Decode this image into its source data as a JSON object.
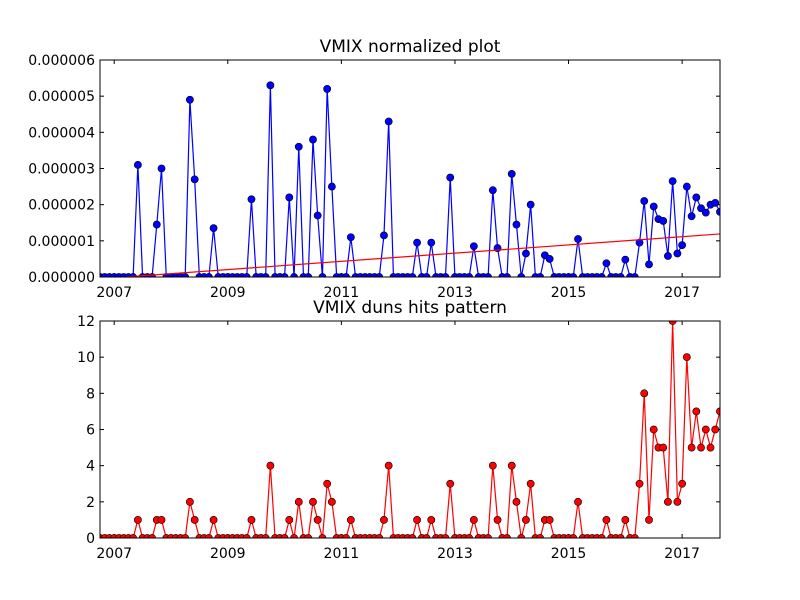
{
  "chart_data": [
    {
      "type": "line",
      "title": "VMIX normalized plot",
      "x": [
        2006.75,
        2006.833,
        2006.917,
        2007.0,
        2007.083,
        2007.167,
        2007.25,
        2007.333,
        2007.417,
        2007.5,
        2007.583,
        2007.667,
        2007.75,
        2007.833,
        2007.917,
        2008.0,
        2008.083,
        2008.167,
        2008.25,
        2008.333,
        2008.417,
        2008.5,
        2008.583,
        2008.667,
        2008.75,
        2008.833,
        2008.917,
        2009.0,
        2009.083,
        2009.167,
        2009.25,
        2009.333,
        2009.417,
        2009.5,
        2009.583,
        2009.667,
        2009.75,
        2009.833,
        2009.917,
        2010.0,
        2010.083,
        2010.167,
        2010.25,
        2010.333,
        2010.417,
        2010.5,
        2010.583,
        2010.667,
        2010.75,
        2010.833,
        2010.917,
        2011.0,
        2011.083,
        2011.167,
        2011.25,
        2011.333,
        2011.417,
        2011.5,
        2011.583,
        2011.667,
        2011.75,
        2011.833,
        2011.917,
        2012.0,
        2012.083,
        2012.167,
        2012.25,
        2012.333,
        2012.417,
        2012.5,
        2012.583,
        2012.667,
        2012.75,
        2012.833,
        2012.917,
        2013.0,
        2013.083,
        2013.167,
        2013.25,
        2013.333,
        2013.417,
        2013.5,
        2013.583,
        2013.667,
        2013.75,
        2013.833,
        2013.917,
        2014.0,
        2014.083,
        2014.167,
        2014.25,
        2014.333,
        2014.417,
        2014.5,
        2014.583,
        2014.667,
        2014.75,
        2014.833,
        2014.917,
        2015.0,
        2015.083,
        2015.167,
        2015.25,
        2015.333,
        2015.417,
        2015.5,
        2015.583,
        2015.667,
        2015.75,
        2015.833,
        2015.917,
        2016.0,
        2016.083,
        2016.167,
        2016.25,
        2016.333,
        2016.417,
        2016.5,
        2016.583,
        2016.667,
        2016.75,
        2016.833,
        2016.917,
        2017.0,
        2017.083,
        2017.167,
        2017.25,
        2017.333,
        2017.417,
        2017.5,
        2017.583,
        2017.667
      ],
      "series": [
        {
          "color": "#0000ff",
          "values": [
            0,
            0,
            0,
            0,
            0,
            0,
            0,
            0,
            3.1e-06,
            0,
            0,
            0,
            1.45e-06,
            3e-06,
            0,
            0,
            0,
            0,
            0,
            4.9e-06,
            2.7e-06,
            0,
            0,
            0,
            1.35e-06,
            0,
            0,
            0,
            0,
            0,
            0,
            0,
            2.15e-06,
            0,
            0,
            0,
            5.3e-06,
            0,
            0,
            0,
            2.2e-06,
            0,
            3.6e-06,
            0,
            0,
            3.8e-06,
            1.7e-06,
            0,
            5.2e-06,
            2.5e-06,
            0,
            0,
            0,
            1.1e-06,
            0,
            0,
            0,
            0,
            0,
            0,
            1.15e-06,
            4.3e-06,
            0,
            0,
            0,
            0,
            0,
            9.5e-07,
            0,
            0,
            9.5e-07,
            0,
            0,
            0,
            2.75e-06,
            0,
            0,
            0,
            0,
            8.5e-07,
            0,
            0,
            0,
            2.4e-06,
            8e-07,
            0,
            0,
            2.85e-06,
            1.45e-06,
            0,
            6.5e-07,
            2e-06,
            0,
            0,
            6e-07,
            5e-07,
            0,
            0,
            0,
            0,
            0,
            1.05e-06,
            0,
            0,
            0,
            0,
            0,
            3.8e-07,
            0,
            0,
            0,
            4.8e-07,
            0,
            0,
            9.5e-07,
            2.1e-06,
            3.5e-07,
            1.95e-06,
            1.6e-06,
            1.55e-06,
            5.8e-07,
            2.65e-06,
            6.5e-07,
            8.8e-07,
            2.5e-06,
            1.68e-06,
            2.2e-06,
            1.9e-06,
            1.78e-06,
            2e-06,
            2.05e-06,
            1.8e-06
          ]
        }
      ],
      "trend": {
        "color": "#ff0000",
        "x": [
          2006.75,
          2017.667
        ],
        "values": [
          -5e-08,
          1.19e-06
        ]
      },
      "xlim": [
        2006.75,
        2017.667
      ],
      "xticks": [
        2007,
        2009,
        2011,
        2013,
        2015,
        2017
      ],
      "ylim": [
        0,
        6e-06
      ],
      "yticks": [
        {
          "value": 0,
          "label": "0.000000"
        },
        {
          "value": 1e-06,
          "label": "0.000001"
        },
        {
          "value": 2e-06,
          "label": "0.000002"
        },
        {
          "value": 3e-06,
          "label": "0.000003"
        },
        {
          "value": 4e-06,
          "label": "0.000004"
        },
        {
          "value": 5e-06,
          "label": "0.000005"
        },
        {
          "value": 6e-06,
          "label": "0.000006"
        }
      ]
    },
    {
      "type": "line",
      "title": "VMIX duns hits pattern",
      "x": [
        2006.75,
        2006.833,
        2006.917,
        2007.0,
        2007.083,
        2007.167,
        2007.25,
        2007.333,
        2007.417,
        2007.5,
        2007.583,
        2007.667,
        2007.75,
        2007.833,
        2007.917,
        2008.0,
        2008.083,
        2008.167,
        2008.25,
        2008.333,
        2008.417,
        2008.5,
        2008.583,
        2008.667,
        2008.75,
        2008.833,
        2008.917,
        2009.0,
        2009.083,
        2009.167,
        2009.25,
        2009.333,
        2009.417,
        2009.5,
        2009.583,
        2009.667,
        2009.75,
        2009.833,
        2009.917,
        2010.0,
        2010.083,
        2010.167,
        2010.25,
        2010.333,
        2010.417,
        2010.5,
        2010.583,
        2010.667,
        2010.75,
        2010.833,
        2010.917,
        2011.0,
        2011.083,
        2011.167,
        2011.25,
        2011.333,
        2011.417,
        2011.5,
        2011.583,
        2011.667,
        2011.75,
        2011.833,
        2011.917,
        2012.0,
        2012.083,
        2012.167,
        2012.25,
        2012.333,
        2012.417,
        2012.5,
        2012.583,
        2012.667,
        2012.75,
        2012.833,
        2012.917,
        2013.0,
        2013.083,
        2013.167,
        2013.25,
        2013.333,
        2013.417,
        2013.5,
        2013.583,
        2013.667,
        2013.75,
        2013.833,
        2013.917,
        2014.0,
        2014.083,
        2014.167,
        2014.25,
        2014.333,
        2014.417,
        2014.5,
        2014.583,
        2014.667,
        2014.75,
        2014.833,
        2014.917,
        2015.0,
        2015.083,
        2015.167,
        2015.25,
        2015.333,
        2015.417,
        2015.5,
        2015.583,
        2015.667,
        2015.75,
        2015.833,
        2015.917,
        2016.0,
        2016.083,
        2016.167,
        2016.25,
        2016.333,
        2016.417,
        2016.5,
        2016.583,
        2016.667,
        2016.75,
        2016.833,
        2016.917,
        2017.0,
        2017.083,
        2017.167,
        2017.25,
        2017.333,
        2017.417,
        2017.5,
        2017.583,
        2017.667
      ],
      "series": [
        {
          "color": "#ff0000",
          "values": [
            0,
            0,
            0,
            0,
            0,
            0,
            0,
            0,
            1,
            0,
            0,
            0,
            1,
            1,
            0,
            0,
            0,
            0,
            0,
            2,
            1,
            0,
            0,
            0,
            1,
            0,
            0,
            0,
            0,
            0,
            0,
            0,
            1,
            0,
            0,
            0,
            4,
            0,
            0,
            0,
            1,
            0,
            2,
            0,
            0,
            2,
            1,
            0,
            3,
            2,
            0,
            0,
            0,
            1,
            0,
            0,
            0,
            0,
            0,
            0,
            1,
            4,
            0,
            0,
            0,
            0,
            0,
            1,
            0,
            0,
            1,
            0,
            0,
            0,
            3,
            0,
            0,
            0,
            0,
            1,
            0,
            0,
            0,
            4,
            1,
            0,
            0,
            4,
            2,
            0,
            1,
            3,
            0,
            0,
            1,
            1,
            0,
            0,
            0,
            0,
            0,
            2,
            0,
            0,
            0,
            0,
            0,
            1,
            0,
            0,
            0,
            1,
            0,
            0,
            3,
            8,
            1,
            6,
            5,
            5,
            2,
            12,
            2,
            3,
            10,
            5,
            7,
            5,
            6,
            5,
            6,
            7
          ]
        }
      ],
      "xlim": [
        2006.75,
        2017.667
      ],
      "xticks": [
        2007,
        2009,
        2011,
        2013,
        2015,
        2017
      ],
      "ylim": [
        0,
        12
      ],
      "yticks": [
        0,
        2,
        4,
        6,
        8,
        10,
        12
      ]
    }
  ]
}
